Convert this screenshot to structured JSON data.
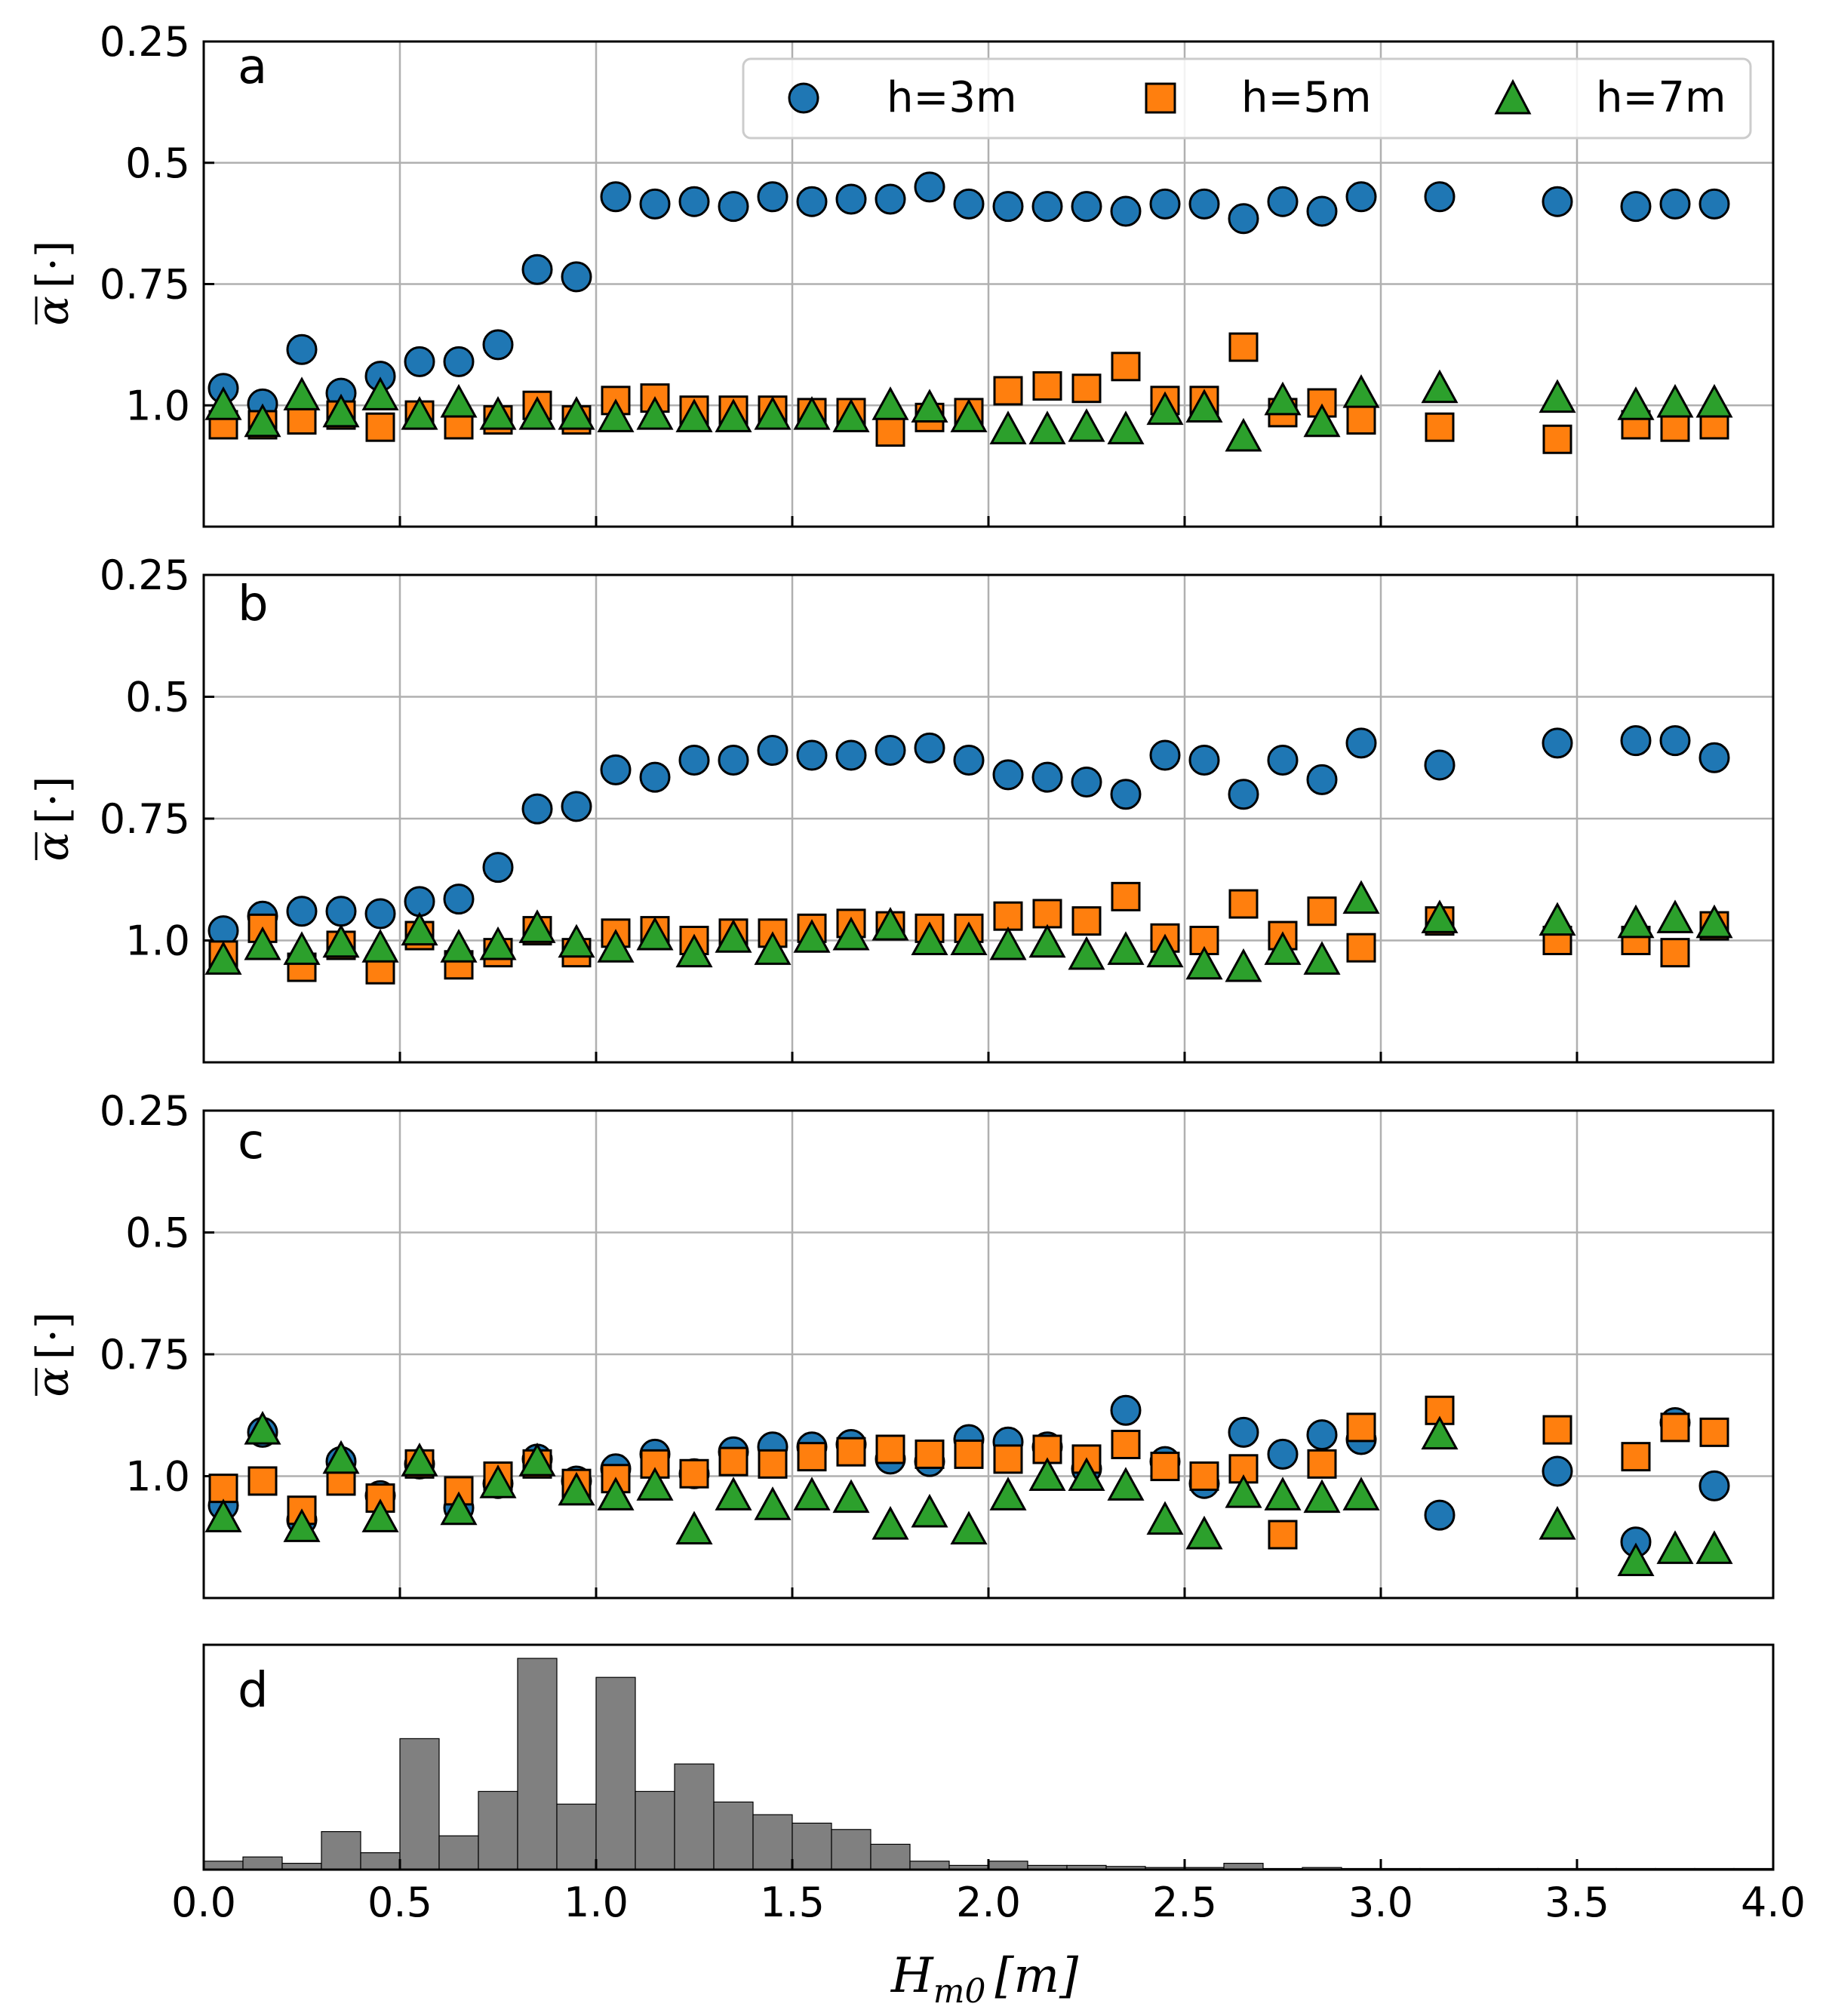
{
  "figure": {
    "xlabel": "H_m0 [m]",
    "xlabel_main": "H",
    "xlabel_sub": "m0",
    "xlabel_unit": "[m]",
    "ylabel": "ᾱ [·]",
    "ylabel_main": "α",
    "ylabel_unit": "[·]",
    "xticks": [
      "0.0",
      "0.5",
      "1.0",
      "1.5",
      "2.0",
      "2.5",
      "3.0",
      "3.5",
      "4.0"
    ],
    "yticks": [
      "0.25",
      "0.5",
      "0.75",
      "1.0"
    ],
    "legend": [
      "h=3m",
      "h=5m",
      "h=7m"
    ],
    "colors": {
      "h3": "#1f77b4",
      "h5": "#ff7f0e",
      "h7": "#2ca02c",
      "hist": "#808080"
    }
  },
  "chart_data": [
    {
      "type": "scatter",
      "panel": "a",
      "xlim": [
        0,
        4
      ],
      "ylim": [
        1.25,
        0.25
      ],
      "grid": true,
      "legend_position": "top-right",
      "x": [
        0.05,
        0.15,
        0.25,
        0.35,
        0.45,
        0.55,
        0.65,
        0.75,
        0.85,
        0.95,
        1.05,
        1.15,
        1.25,
        1.35,
        1.45,
        1.55,
        1.65,
        1.75,
        1.85,
        1.95,
        2.05,
        2.15,
        2.25,
        2.35,
        2.45,
        2.55,
        2.65,
        2.75,
        2.85,
        2.95,
        3.15,
        3.45,
        3.65,
        3.75,
        3.85
      ],
      "series": [
        {
          "name": "h=3m",
          "values": [
            0.965,
            0.997,
            0.885,
            0.975,
            0.94,
            0.91,
            0.91,
            0.875,
            0.72,
            0.735,
            0.57,
            0.585,
            0.58,
            0.59,
            0.57,
            0.58,
            0.575,
            0.575,
            0.55,
            0.585,
            0.59,
            0.59,
            0.59,
            0.6,
            0.585,
            0.585,
            0.615,
            0.58,
            0.6,
            0.57,
            0.57,
            0.58,
            0.59,
            0.585,
            0.585
          ]
        },
        {
          "name": "h=5m",
          "values": [
            1.04,
            1.04,
            1.03,
            1.02,
            1.045,
            1.02,
            1.04,
            1.03,
            1.0,
            1.03,
            0.99,
            0.985,
            1.01,
            1.01,
            1.01,
            1.015,
            1.015,
            1.055,
            1.025,
            1.015,
            0.97,
            0.96,
            0.965,
            0.92,
            0.99,
            0.99,
            0.88,
            1.015,
            0.995,
            1.03,
            1.045,
            1.07,
            1.04,
            1.045,
            1.04
          ]
        },
        {
          "name": "h=7m",
          "values": [
            1.0,
            1.035,
            0.98,
            1.015,
            0.98,
            1.02,
            0.995,
            1.02,
            1.02,
            1.02,
            1.025,
            1.02,
            1.025,
            1.025,
            1.02,
            1.02,
            1.025,
            1.0,
            1.005,
            1.025,
            1.05,
            1.05,
            1.045,
            1.05,
            1.01,
            1.005,
            1.065,
            0.99,
            1.035,
            0.975,
            0.965,
            0.985,
            1.0,
            0.995,
            0.995
          ]
        }
      ]
    },
    {
      "type": "scatter",
      "panel": "b",
      "xlim": [
        0,
        4
      ],
      "ylim": [
        1.25,
        0.25
      ],
      "grid": true,
      "x": [
        0.05,
        0.15,
        0.25,
        0.35,
        0.45,
        0.55,
        0.65,
        0.75,
        0.85,
        0.95,
        1.05,
        1.15,
        1.25,
        1.35,
        1.45,
        1.55,
        1.65,
        1.75,
        1.85,
        1.95,
        2.05,
        2.15,
        2.25,
        2.35,
        2.45,
        2.55,
        2.65,
        2.75,
        2.85,
        2.95,
        3.15,
        3.45,
        3.65,
        3.75,
        3.85
      ],
      "series": [
        {
          "name": "h=3m",
          "values": [
            0.98,
            0.95,
            0.94,
            0.94,
            0.945,
            0.92,
            0.915,
            0.85,
            0.73,
            0.725,
            0.65,
            0.665,
            0.63,
            0.63,
            0.61,
            0.62,
            0.62,
            0.61,
            0.605,
            0.63,
            0.66,
            0.665,
            0.675,
            0.7,
            0.62,
            0.63,
            0.7,
            0.63,
            0.67,
            0.595,
            0.64,
            0.595,
            0.59,
            0.59,
            0.625
          ]
        },
        {
          "name": "h=5m",
          "values": [
            1.03,
            0.975,
            1.055,
            1.01,
            1.06,
            0.99,
            1.05,
            1.025,
            0.98,
            1.025,
            0.985,
            0.98,
            1.0,
            0.985,
            0.985,
            0.975,
            0.965,
            0.97,
            0.975,
            0.975,
            0.95,
            0.945,
            0.96,
            0.91,
            0.995,
            1.0,
            0.925,
            0.99,
            0.94,
            1.015,
            0.96,
            1.0,
            1.0,
            1.025,
            0.97
          ]
        },
        {
          "name": "h=7m",
          "values": [
            1.04,
            1.01,
            1.02,
            1.005,
            1.015,
            0.98,
            1.015,
            1.01,
            0.975,
            1.005,
            1.015,
            0.99,
            1.025,
            0.995,
            1.02,
            0.995,
            0.99,
            0.97,
            1.0,
            1.0,
            1.01,
            1.005,
            1.03,
            1.02,
            1.025,
            1.05,
            1.055,
            1.02,
            1.04,
            0.915,
            0.955,
            0.96,
            0.965,
            0.955,
            0.965
          ]
        }
      ]
    },
    {
      "type": "scatter",
      "panel": "c",
      "xlim": [
        0,
        4
      ],
      "ylim": [
        1.25,
        0.25
      ],
      "grid": true,
      "x": [
        0.05,
        0.15,
        0.25,
        0.35,
        0.45,
        0.55,
        0.65,
        0.75,
        0.85,
        0.95,
        1.05,
        1.15,
        1.25,
        1.35,
        1.45,
        1.55,
        1.65,
        1.75,
        1.85,
        1.95,
        2.05,
        2.15,
        2.25,
        2.35,
        2.45,
        2.55,
        2.65,
        2.75,
        2.85,
        2.95,
        3.15,
        3.45,
        3.65,
        3.75,
        3.85
      ],
      "series": [
        {
          "name": "h=3m",
          "values": [
            1.06,
            0.91,
            1.09,
            0.97,
            1.04,
            0.975,
            1.065,
            1.015,
            0.965,
            1.01,
            0.985,
            0.955,
            0.995,
            0.95,
            0.94,
            0.94,
            0.935,
            0.965,
            0.97,
            0.925,
            0.93,
            0.94,
            0.985,
            0.865,
            0.97,
            1.015,
            0.91,
            0.955,
            0.915,
            0.925,
            1.08,
            0.99,
            1.135,
            0.89,
            1.02
          ]
        },
        {
          "name": "h=5m",
          "values": [
            1.025,
            1.01,
            1.07,
            1.01,
            1.045,
            0.975,
            1.03,
            1.0,
            0.975,
            1.015,
            1.005,
            0.975,
            0.995,
            0.97,
            0.975,
            0.96,
            0.95,
            0.945,
            0.955,
            0.955,
            0.965,
            0.945,
            0.965,
            0.935,
            0.98,
            1.0,
            0.985,
            1.12,
            0.975,
            0.9,
            0.865,
            0.905,
            0.96,
            0.9,
            0.91
          ]
        },
        {
          "name": "h=7m",
          "values": [
            1.085,
            0.905,
            1.105,
            0.965,
            1.085,
            0.97,
            1.07,
            1.015,
            0.97,
            1.03,
            1.04,
            1.02,
            1.11,
            1.04,
            1.06,
            1.04,
            1.045,
            1.1,
            1.075,
            1.11,
            1.04,
            1.0,
            1.0,
            1.02,
            1.09,
            1.12,
            1.035,
            1.04,
            1.045,
            1.04,
            0.915,
            1.1,
            1.175,
            1.15,
            1.15
          ]
        }
      ]
    },
    {
      "type": "bar",
      "panel": "d",
      "xlim": [
        0,
        4
      ],
      "bin_width": 0.1,
      "x": [
        0.05,
        0.15,
        0.25,
        0.35,
        0.45,
        0.55,
        0.65,
        0.75,
        0.85,
        0.95,
        1.05,
        1.15,
        1.25,
        1.35,
        1.45,
        1.55,
        1.65,
        1.75,
        1.85,
        1.95,
        2.05,
        2.15,
        2.25,
        2.35,
        2.45,
        2.55,
        2.65,
        2.75,
        2.85,
        2.95,
        3.05,
        3.15,
        3.25,
        3.35,
        3.45,
        3.55,
        3.65,
        3.75,
        3.85,
        3.95
      ],
      "values": [
        4,
        6,
        3,
        18,
        8,
        62,
        16,
        37,
        100,
        31,
        91,
        37,
        50,
        32,
        26,
        22,
        19,
        12,
        4,
        2,
        4,
        2,
        2,
        1.5,
        1,
        1,
        3,
        0.5,
        1,
        0.5,
        0.3,
        0.3,
        0.3,
        0.3,
        0.5,
        0.3,
        0.3,
        0.3,
        0.3,
        0.3
      ]
    }
  ],
  "panels": {
    "a": {
      "label": "a"
    },
    "b": {
      "label": "b"
    },
    "c": {
      "label": "c"
    },
    "d": {
      "label": "d"
    }
  }
}
